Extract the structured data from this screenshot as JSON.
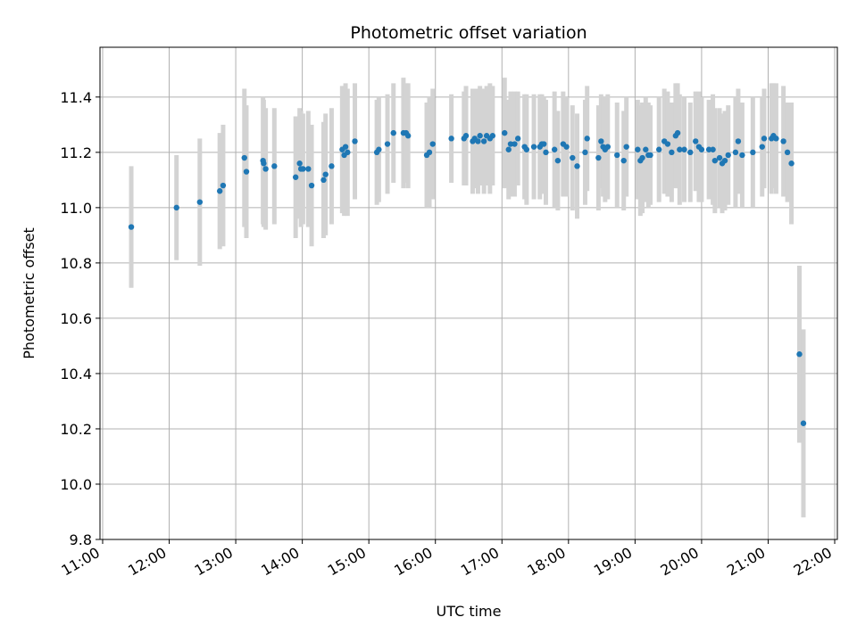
{
  "chart_data": {
    "type": "scatter",
    "title": "Photometric offset variation",
    "xlabel": "UTC time",
    "ylabel": "Photometric offset",
    "x_units": "hours (UTC)",
    "xlim": [
      10.96,
      22.04
    ],
    "ylim": [
      9.8,
      11.58
    ],
    "x_ticks": [
      11,
      12,
      13,
      14,
      15,
      16,
      17,
      18,
      19,
      20,
      21,
      22
    ],
    "x_tick_labels": [
      "11:00",
      "12:00",
      "13:00",
      "14:00",
      "15:00",
      "16:00",
      "17:00",
      "18:00",
      "19:00",
      "20:00",
      "21:00",
      "22:00"
    ],
    "y_ticks": [
      9.8,
      10.0,
      10.2,
      10.4,
      10.6,
      10.8,
      11.0,
      11.2,
      11.4
    ],
    "y_tick_labels": [
      "9.8",
      "10.0",
      "10.2",
      "10.4",
      "10.6",
      "10.8",
      "11.0",
      "11.2",
      "11.4"
    ],
    "grid": true,
    "point_color": "#1f77b4",
    "errorbar_color": "#d3d3d3",
    "series": [
      {
        "points": [
          [
            11.43,
            10.93,
            0.22
          ],
          [
            12.11,
            11.0,
            0.19
          ],
          [
            12.46,
            11.02,
            0.23
          ],
          [
            12.76,
            11.06,
            0.21
          ],
          [
            12.81,
            11.08,
            0.22
          ],
          [
            13.13,
            11.18,
            0.25
          ],
          [
            13.16,
            11.13,
            0.24
          ],
          [
            13.41,
            11.17,
            0.23
          ],
          [
            13.42,
            11.16,
            0.23
          ],
          [
            13.45,
            11.14,
            0.22
          ],
          [
            13.58,
            11.15,
            0.21
          ],
          [
            13.9,
            11.11,
            0.22
          ],
          [
            13.96,
            11.16,
            0.2
          ],
          [
            13.98,
            11.14,
            0.21
          ],
          [
            14.01,
            11.14,
            0.2
          ],
          [
            14.09,
            11.14,
            0.21
          ],
          [
            14.14,
            11.08,
            0.22
          ],
          [
            14.32,
            11.1,
            0.21
          ],
          [
            14.35,
            11.12,
            0.22
          ],
          [
            14.44,
            11.15,
            0.21
          ],
          [
            14.6,
            11.21,
            0.23
          ],
          [
            14.63,
            11.19,
            0.22
          ],
          [
            14.65,
            11.22,
            0.23
          ],
          [
            14.68,
            11.2,
            0.23
          ],
          [
            14.79,
            11.24,
            0.21
          ],
          [
            15.12,
            11.2,
            0.19
          ],
          [
            15.15,
            11.21,
            0.19
          ],
          [
            15.28,
            11.23,
            0.18
          ],
          [
            15.37,
            11.27,
            0.18
          ],
          [
            15.52,
            11.27,
            0.2
          ],
          [
            15.56,
            11.27,
            0.18
          ],
          [
            15.59,
            11.26,
            0.19
          ],
          [
            15.87,
            11.19,
            0.19
          ],
          [
            15.91,
            11.2,
            0.2
          ],
          [
            15.96,
            11.23,
            0.2
          ],
          [
            16.24,
            11.25,
            0.16
          ],
          [
            16.43,
            11.25,
            0.17
          ],
          [
            16.46,
            11.26,
            0.18
          ],
          [
            16.56,
            11.24,
            0.19
          ],
          [
            16.59,
            11.25,
            0.18
          ],
          [
            16.64,
            11.24,
            0.19
          ],
          [
            16.67,
            11.26,
            0.18
          ],
          [
            16.73,
            11.24,
            0.19
          ],
          [
            16.77,
            11.26,
            0.18
          ],
          [
            16.82,
            11.25,
            0.2
          ],
          [
            16.86,
            11.26,
            0.18
          ],
          [
            17.04,
            11.27,
            0.2
          ],
          [
            17.1,
            11.21,
            0.18
          ],
          [
            17.13,
            11.23,
            0.19
          ],
          [
            17.19,
            11.23,
            0.19
          ],
          [
            17.24,
            11.25,
            0.17
          ],
          [
            17.34,
            11.22,
            0.19
          ],
          [
            17.37,
            11.21,
            0.2
          ],
          [
            17.48,
            11.22,
            0.19
          ],
          [
            17.57,
            11.22,
            0.19
          ],
          [
            17.6,
            11.23,
            0.18
          ],
          [
            17.63,
            11.23,
            0.17
          ],
          [
            17.66,
            11.2,
            0.19
          ],
          [
            17.79,
            11.21,
            0.21
          ],
          [
            17.84,
            11.17,
            0.18
          ],
          [
            17.92,
            11.23,
            0.19
          ],
          [
            17.97,
            11.22,
            0.18
          ],
          [
            18.06,
            11.18,
            0.19
          ],
          [
            18.13,
            11.15,
            0.19
          ],
          [
            18.25,
            11.2,
            0.19
          ],
          [
            18.28,
            11.25,
            0.19
          ],
          [
            18.45,
            11.18,
            0.19
          ],
          [
            18.49,
            11.24,
            0.17
          ],
          [
            18.52,
            11.22,
            0.18
          ],
          [
            18.55,
            11.21,
            0.19
          ],
          [
            18.59,
            11.22,
            0.19
          ],
          [
            18.73,
            11.19,
            0.19
          ],
          [
            18.83,
            11.17,
            0.18
          ],
          [
            18.87,
            11.22,
            0.18
          ],
          [
            19.04,
            11.21,
            0.18
          ],
          [
            19.08,
            11.17,
            0.2
          ],
          [
            19.11,
            11.18,
            0.2
          ],
          [
            19.16,
            11.21,
            0.19
          ],
          [
            19.2,
            11.19,
            0.19
          ],
          [
            19.23,
            11.19,
            0.18
          ],
          [
            19.36,
            11.21,
            0.19
          ],
          [
            19.44,
            11.24,
            0.19
          ],
          [
            19.49,
            11.23,
            0.19
          ],
          [
            19.55,
            11.2,
            0.18
          ],
          [
            19.61,
            11.26,
            0.19
          ],
          [
            19.64,
            11.27,
            0.18
          ],
          [
            19.67,
            11.21,
            0.2
          ],
          [
            19.74,
            11.21,
            0.19
          ],
          [
            19.83,
            11.2,
            0.18
          ],
          [
            19.91,
            11.24,
            0.18
          ],
          [
            19.96,
            11.22,
            0.2
          ],
          [
            20.0,
            11.21,
            0.19
          ],
          [
            20.11,
            11.21,
            0.18
          ],
          [
            20.17,
            11.21,
            0.2
          ],
          [
            20.2,
            11.17,
            0.19
          ],
          [
            20.27,
            11.18,
            0.18
          ],
          [
            20.31,
            11.16,
            0.18
          ],
          [
            20.35,
            11.17,
            0.18
          ],
          [
            20.4,
            11.19,
            0.18
          ],
          [
            20.51,
            11.2,
            0.2
          ],
          [
            20.55,
            11.24,
            0.19
          ],
          [
            20.61,
            11.19,
            0.19
          ],
          [
            20.77,
            11.2,
            0.2
          ],
          [
            20.91,
            11.22,
            0.18
          ],
          [
            20.94,
            11.25,
            0.18
          ],
          [
            21.05,
            11.25,
            0.2
          ],
          [
            21.08,
            11.26,
            0.19
          ],
          [
            21.12,
            11.25,
            0.2
          ],
          [
            21.23,
            11.24,
            0.2
          ],
          [
            21.29,
            11.2,
            0.18
          ],
          [
            21.35,
            11.16,
            0.22
          ],
          [
            21.47,
            10.47,
            0.32
          ],
          [
            21.53,
            10.22,
            0.34
          ]
        ]
      }
    ]
  }
}
